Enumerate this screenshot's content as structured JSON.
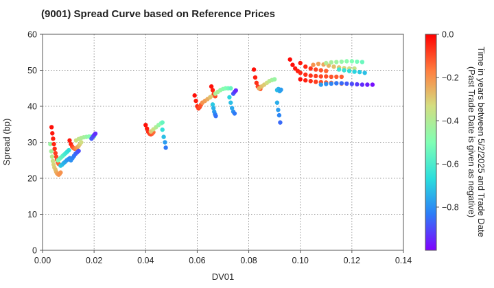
{
  "chart_data": {
    "type": "scatter",
    "title": "(9001)   Spread Curve based on Reference Prices",
    "xlabel": "DV01",
    "ylabel": "Spread (bp)",
    "xlim": [
      0.0,
      0.14
    ],
    "ylim": [
      0,
      60
    ],
    "x_ticks": [
      "0.00",
      "0.02",
      "0.04",
      "0.06",
      "0.08",
      "0.10",
      "0.12",
      "0.14"
    ],
    "x_tick_values": [
      0.0,
      0.02,
      0.04,
      0.06,
      0.08,
      0.1,
      0.12,
      0.14
    ],
    "y_ticks": [
      "0",
      "10",
      "20",
      "30",
      "40",
      "50",
      "60"
    ],
    "y_tick_values": [
      0,
      10,
      20,
      30,
      40,
      50,
      60
    ],
    "grid": "dotted",
    "colorbar": {
      "label_line1": "Time in years between 5/2/2025 and Trade Date",
      "label_line2": "(Past Trade Date is given as negative)",
      "range": [
        -1.0,
        0.0
      ],
      "ticks": [
        "0.0",
        "−0.2",
        "−0.4",
        "−0.6",
        "−0.8"
      ],
      "tick_values": [
        0.0,
        -0.2,
        -0.4,
        -0.6,
        -0.8
      ],
      "colormap": "rainbow"
    },
    "colormap_stops": [
      "#8000ff",
      "#2c7ef7",
      "#2adddd",
      "#80ffb4",
      "#d4dd80",
      "#ff7f40",
      "#ff0000"
    ],
    "series": [
      {
        "x": [
          0.003,
          0.0034,
          0.0037,
          0.004,
          0.0043,
          0.0046,
          0.005,
          0.0053,
          0.0056,
          0.006,
          0.0063,
          0.0066,
          0.007
        ],
        "y": [
          29.5,
          27.5,
          26.0,
          24.8,
          23.8,
          23.0,
          22.4,
          21.8,
          21.4,
          21.1,
          21.0,
          21.2,
          21.6
        ],
        "t": [
          -0.45,
          -0.42,
          -0.38,
          -0.35,
          -0.32,
          -0.3,
          -0.28,
          -0.26,
          -0.24,
          -0.22,
          -0.21,
          -0.2,
          -0.2
        ]
      },
      {
        "x": [
          0.0035,
          0.0038,
          0.0041,
          0.0044,
          0.0047,
          0.005,
          0.0053,
          0.0056,
          0.0059,
          0.0062
        ],
        "y": [
          34.2,
          32.5,
          31.0,
          29.5,
          28.2,
          27.0,
          26.0,
          25.2,
          24.5,
          24.0
        ],
        "t": [
          -0.02,
          -0.03,
          -0.04,
          -0.05,
          -0.06,
          -0.08,
          -0.09,
          -0.1,
          -0.12,
          -0.13
        ]
      },
      {
        "x": [
          0.006,
          0.0066,
          0.0072,
          0.0078,
          0.0084,
          0.009,
          0.0096,
          0.0102
        ],
        "y": [
          25.0,
          25.4,
          25.8,
          26.2,
          26.6,
          27.0,
          27.4,
          27.8
        ],
        "t": [
          -0.5,
          -0.52,
          -0.55,
          -0.57,
          -0.6,
          -0.62,
          -0.64,
          -0.66
        ]
      },
      {
        "x": [
          0.007,
          0.0076,
          0.0082,
          0.0088,
          0.0094,
          0.01,
          0.0106
        ],
        "y": [
          23.5,
          23.8,
          24.2,
          24.6,
          25.0,
          25.3,
          25.6
        ],
        "t": [
          -0.7,
          -0.72,
          -0.74,
          -0.76,
          -0.78,
          -0.8,
          -0.82
        ]
      },
      {
        "x": [
          0.0105,
          0.011,
          0.0115,
          0.012,
          0.0125,
          0.013,
          0.0135,
          0.014,
          0.0145,
          0.015
        ],
        "y": [
          30.5,
          29.5,
          28.8,
          28.4,
          28.2,
          28.3,
          28.6,
          29.0,
          29.5,
          30.0
        ],
        "t": [
          -0.03,
          -0.05,
          -0.08,
          -0.12,
          -0.15,
          -0.18,
          -0.22,
          -0.26,
          -0.3,
          -0.34
        ]
      },
      {
        "x": [
          0.013,
          0.014,
          0.015,
          0.016,
          0.017,
          0.018,
          0.019,
          0.02
        ],
        "y": [
          30.5,
          30.9,
          31.2,
          31.4,
          31.5,
          31.6,
          31.6,
          31.7
        ],
        "t": [
          -0.35,
          -0.37,
          -0.4,
          -0.42,
          -0.45,
          -0.48,
          -0.5,
          -0.52
        ]
      },
      {
        "x": [
          0.011,
          0.0116,
          0.0122,
          0.0128,
          0.0134,
          0.014
        ],
        "y": [
          25.0,
          25.6,
          26.2,
          26.8,
          27.2,
          27.6
        ],
        "t": [
          -0.8,
          -0.82,
          -0.84,
          -0.86,
          -0.88,
          -0.9
        ]
      },
      {
        "x": [
          0.019,
          0.0195,
          0.02,
          0.0205
        ],
        "y": [
          31.0,
          31.5,
          32.0,
          32.4
        ],
        "t": [
          -0.88,
          -0.9,
          -0.92,
          -0.94
        ]
      },
      {
        "x": [
          0.04,
          0.0405,
          0.041,
          0.0415,
          0.042,
          0.0425,
          0.043
        ],
        "y": [
          34.8,
          33.8,
          32.9,
          32.4,
          32.2,
          32.4,
          32.8
        ],
        "t": [
          -0.02,
          -0.04,
          -0.06,
          -0.08,
          -0.1,
          -0.12,
          -0.14
        ]
      },
      {
        "x": [
          0.042,
          0.043,
          0.044,
          0.045,
          0.046,
          0.0465
        ],
        "y": [
          33.0,
          33.6,
          34.2,
          34.8,
          35.3,
          35.5
        ],
        "t": [
          -0.3,
          -0.35,
          -0.4,
          -0.45,
          -0.5,
          -0.55
        ]
      },
      {
        "x": [
          0.0465,
          0.047,
          0.0475,
          0.0478
        ],
        "y": [
          33.5,
          31.5,
          30.0,
          28.5
        ],
        "t": [
          -0.65,
          -0.72,
          -0.78,
          -0.84
        ]
      },
      {
        "x": [
          0.059,
          0.0595,
          0.06,
          0.0605,
          0.061,
          0.0615,
          0.062
        ],
        "y": [
          43.0,
          41.5,
          40.0,
          39.4,
          39.8,
          40.5,
          41.0
        ],
        "t": [
          -0.02,
          -0.04,
          -0.06,
          -0.08,
          -0.1,
          -0.12,
          -0.14
        ]
      },
      {
        "x": [
          0.062,
          0.063,
          0.064,
          0.065,
          0.066
        ],
        "y": [
          41.0,
          41.5,
          42.0,
          42.5,
          43.0
        ],
        "t": [
          -0.2,
          -0.22,
          -0.25,
          -0.28,
          -0.3
        ]
      },
      {
        "x": [
          0.0655,
          0.066,
          0.0665,
          0.067
        ],
        "y": [
          45.5,
          44.5,
          43.5,
          42.8
        ],
        "t": [
          -0.02,
          -0.04,
          -0.07,
          -0.1
        ]
      },
      {
        "x": [
          0.067,
          0.068,
          0.069,
          0.07,
          0.071,
          0.072,
          0.073
        ],
        "y": [
          43.5,
          44.0,
          44.5,
          44.8,
          45.0,
          45.0,
          45.0
        ],
        "t": [
          -0.4,
          -0.42,
          -0.45,
          -0.48,
          -0.5,
          -0.52,
          -0.55
        ]
      },
      {
        "x": [
          0.066,
          0.0663,
          0.0666,
          0.0669,
          0.0672
        ],
        "y": [
          40.5,
          39.5,
          38.5,
          37.8,
          37.3
        ],
        "t": [
          -0.7,
          -0.74,
          -0.78,
          -0.82,
          -0.85
        ]
      },
      {
        "x": [
          0.0725,
          0.073,
          0.0735,
          0.074,
          0.0745
        ],
        "y": [
          42.5,
          41.0,
          39.5,
          38.5,
          38.0
        ],
        "t": [
          -0.68,
          -0.72,
          -0.76,
          -0.8,
          -0.84
        ]
      },
      {
        "x": [
          0.074,
          0.0745,
          0.075
        ],
        "y": [
          43.5,
          44.0,
          44.4
        ],
        "t": [
          -0.88,
          -0.92,
          -0.95
        ]
      },
      {
        "x": [
          0.082,
          0.0825,
          0.083,
          0.0835,
          0.084,
          0.0845
        ],
        "y": [
          50.2,
          48.0,
          46.5,
          45.5,
          45.0,
          44.8
        ],
        "t": [
          -0.02,
          -0.04,
          -0.06,
          -0.08,
          -0.1,
          -0.12
        ]
      },
      {
        "x": [
          0.084,
          0.085,
          0.086,
          0.087,
          0.088,
          0.089,
          0.09
        ],
        "y": [
          45.0,
          45.5,
          46.0,
          46.5,
          47.0,
          47.3,
          47.5
        ],
        "t": [
          -0.25,
          -0.28,
          -0.3,
          -0.34,
          -0.38,
          -0.42,
          -0.45
        ]
      },
      {
        "x": [
          0.091,
          0.0915,
          0.092,
          0.0925
        ],
        "y": [
          44.5,
          44.8,
          44.2,
          44.6
        ],
        "t": [
          -0.72,
          -0.74,
          -0.76,
          -0.78
        ]
      },
      {
        "x": [
          0.091,
          0.0914,
          0.0918,
          0.0922
        ],
        "y": [
          41.0,
          39.0,
          37.5,
          35.5
        ],
        "t": [
          -0.75,
          -0.78,
          -0.82,
          -0.86
        ]
      },
      {
        "x": [
          0.096,
          0.097,
          0.098,
          0.099,
          0.1,
          0.102,
          0.104,
          0.106,
          0.108,
          0.11,
          0.112,
          0.114,
          0.116
        ],
        "y": [
          53.0,
          51.5,
          50.5,
          49.8,
          49.3,
          48.8,
          48.5,
          48.4,
          48.3,
          48.3,
          48.2,
          48.2,
          48.2
        ],
        "t": [
          -0.01,
          -0.02,
          -0.03,
          -0.04,
          -0.05,
          -0.06,
          -0.07,
          -0.08,
          -0.09,
          -0.1,
          -0.11,
          -0.12,
          -0.12
        ]
      },
      {
        "x": [
          0.1,
          0.102,
          0.104,
          0.106,
          0.108,
          0.11,
          0.112,
          0.114,
          0.116
        ],
        "y": [
          47.5,
          47.2,
          47.0,
          46.8,
          46.7,
          46.6,
          46.5,
          46.4,
          46.3
        ],
        "t": [
          -0.02,
          -0.04,
          -0.06,
          -0.08,
          -0.1,
          -0.12,
          -0.14,
          -0.16,
          -0.18
        ]
      },
      {
        "x": [
          0.105,
          0.107,
          0.109,
          0.111,
          0.113,
          0.115,
          0.117,
          0.119,
          0.121
        ],
        "y": [
          51.5,
          51.8,
          51.6,
          51.3,
          51.0,
          50.8,
          50.6,
          50.5,
          50.5
        ],
        "t": [
          -0.2,
          -0.22,
          -0.24,
          -0.26,
          -0.28,
          -0.3,
          -0.32,
          -0.34,
          -0.36
        ]
      },
      {
        "x": [
          0.11,
          0.112,
          0.114,
          0.116,
          0.118,
          0.12,
          0.122,
          0.124
        ],
        "y": [
          52.0,
          52.2,
          52.3,
          52.4,
          52.5,
          52.5,
          52.4,
          52.3
        ],
        "t": [
          -0.4,
          -0.42,
          -0.44,
          -0.46,
          -0.48,
          -0.5,
          -0.52,
          -0.54
        ]
      },
      {
        "x": [
          0.115,
          0.117,
          0.119,
          0.121,
          0.123,
          0.125
        ],
        "y": [
          50.2,
          50.0,
          49.8,
          49.6,
          49.5,
          49.3
        ],
        "t": [
          -0.62,
          -0.64,
          -0.66,
          -0.68,
          -0.7,
          -0.72
        ]
      },
      {
        "x": [
          0.108,
          0.11,
          0.112,
          0.114,
          0.116,
          0.118,
          0.12,
          0.122,
          0.124,
          0.126,
          0.128
        ],
        "y": [
          46.0,
          46.2,
          46.3,
          46.4,
          46.4,
          46.3,
          46.2,
          46.1,
          46.0,
          46.0,
          46.0
        ],
        "t": [
          -0.78,
          -0.8,
          -0.82,
          -0.84,
          -0.86,
          -0.88,
          -0.9,
          -0.92,
          -0.94,
          -0.96,
          -0.98
        ]
      },
      {
        "x": [
          0.1,
          0.102,
          0.104,
          0.106,
          0.108,
          0.11
        ],
        "y": [
          52.0,
          51.0,
          50.5,
          50.2,
          50.0,
          49.8
        ],
        "t": [
          -0.03,
          -0.05,
          -0.07,
          -0.09,
          -0.11,
          -0.13
        ]
      }
    ]
  }
}
